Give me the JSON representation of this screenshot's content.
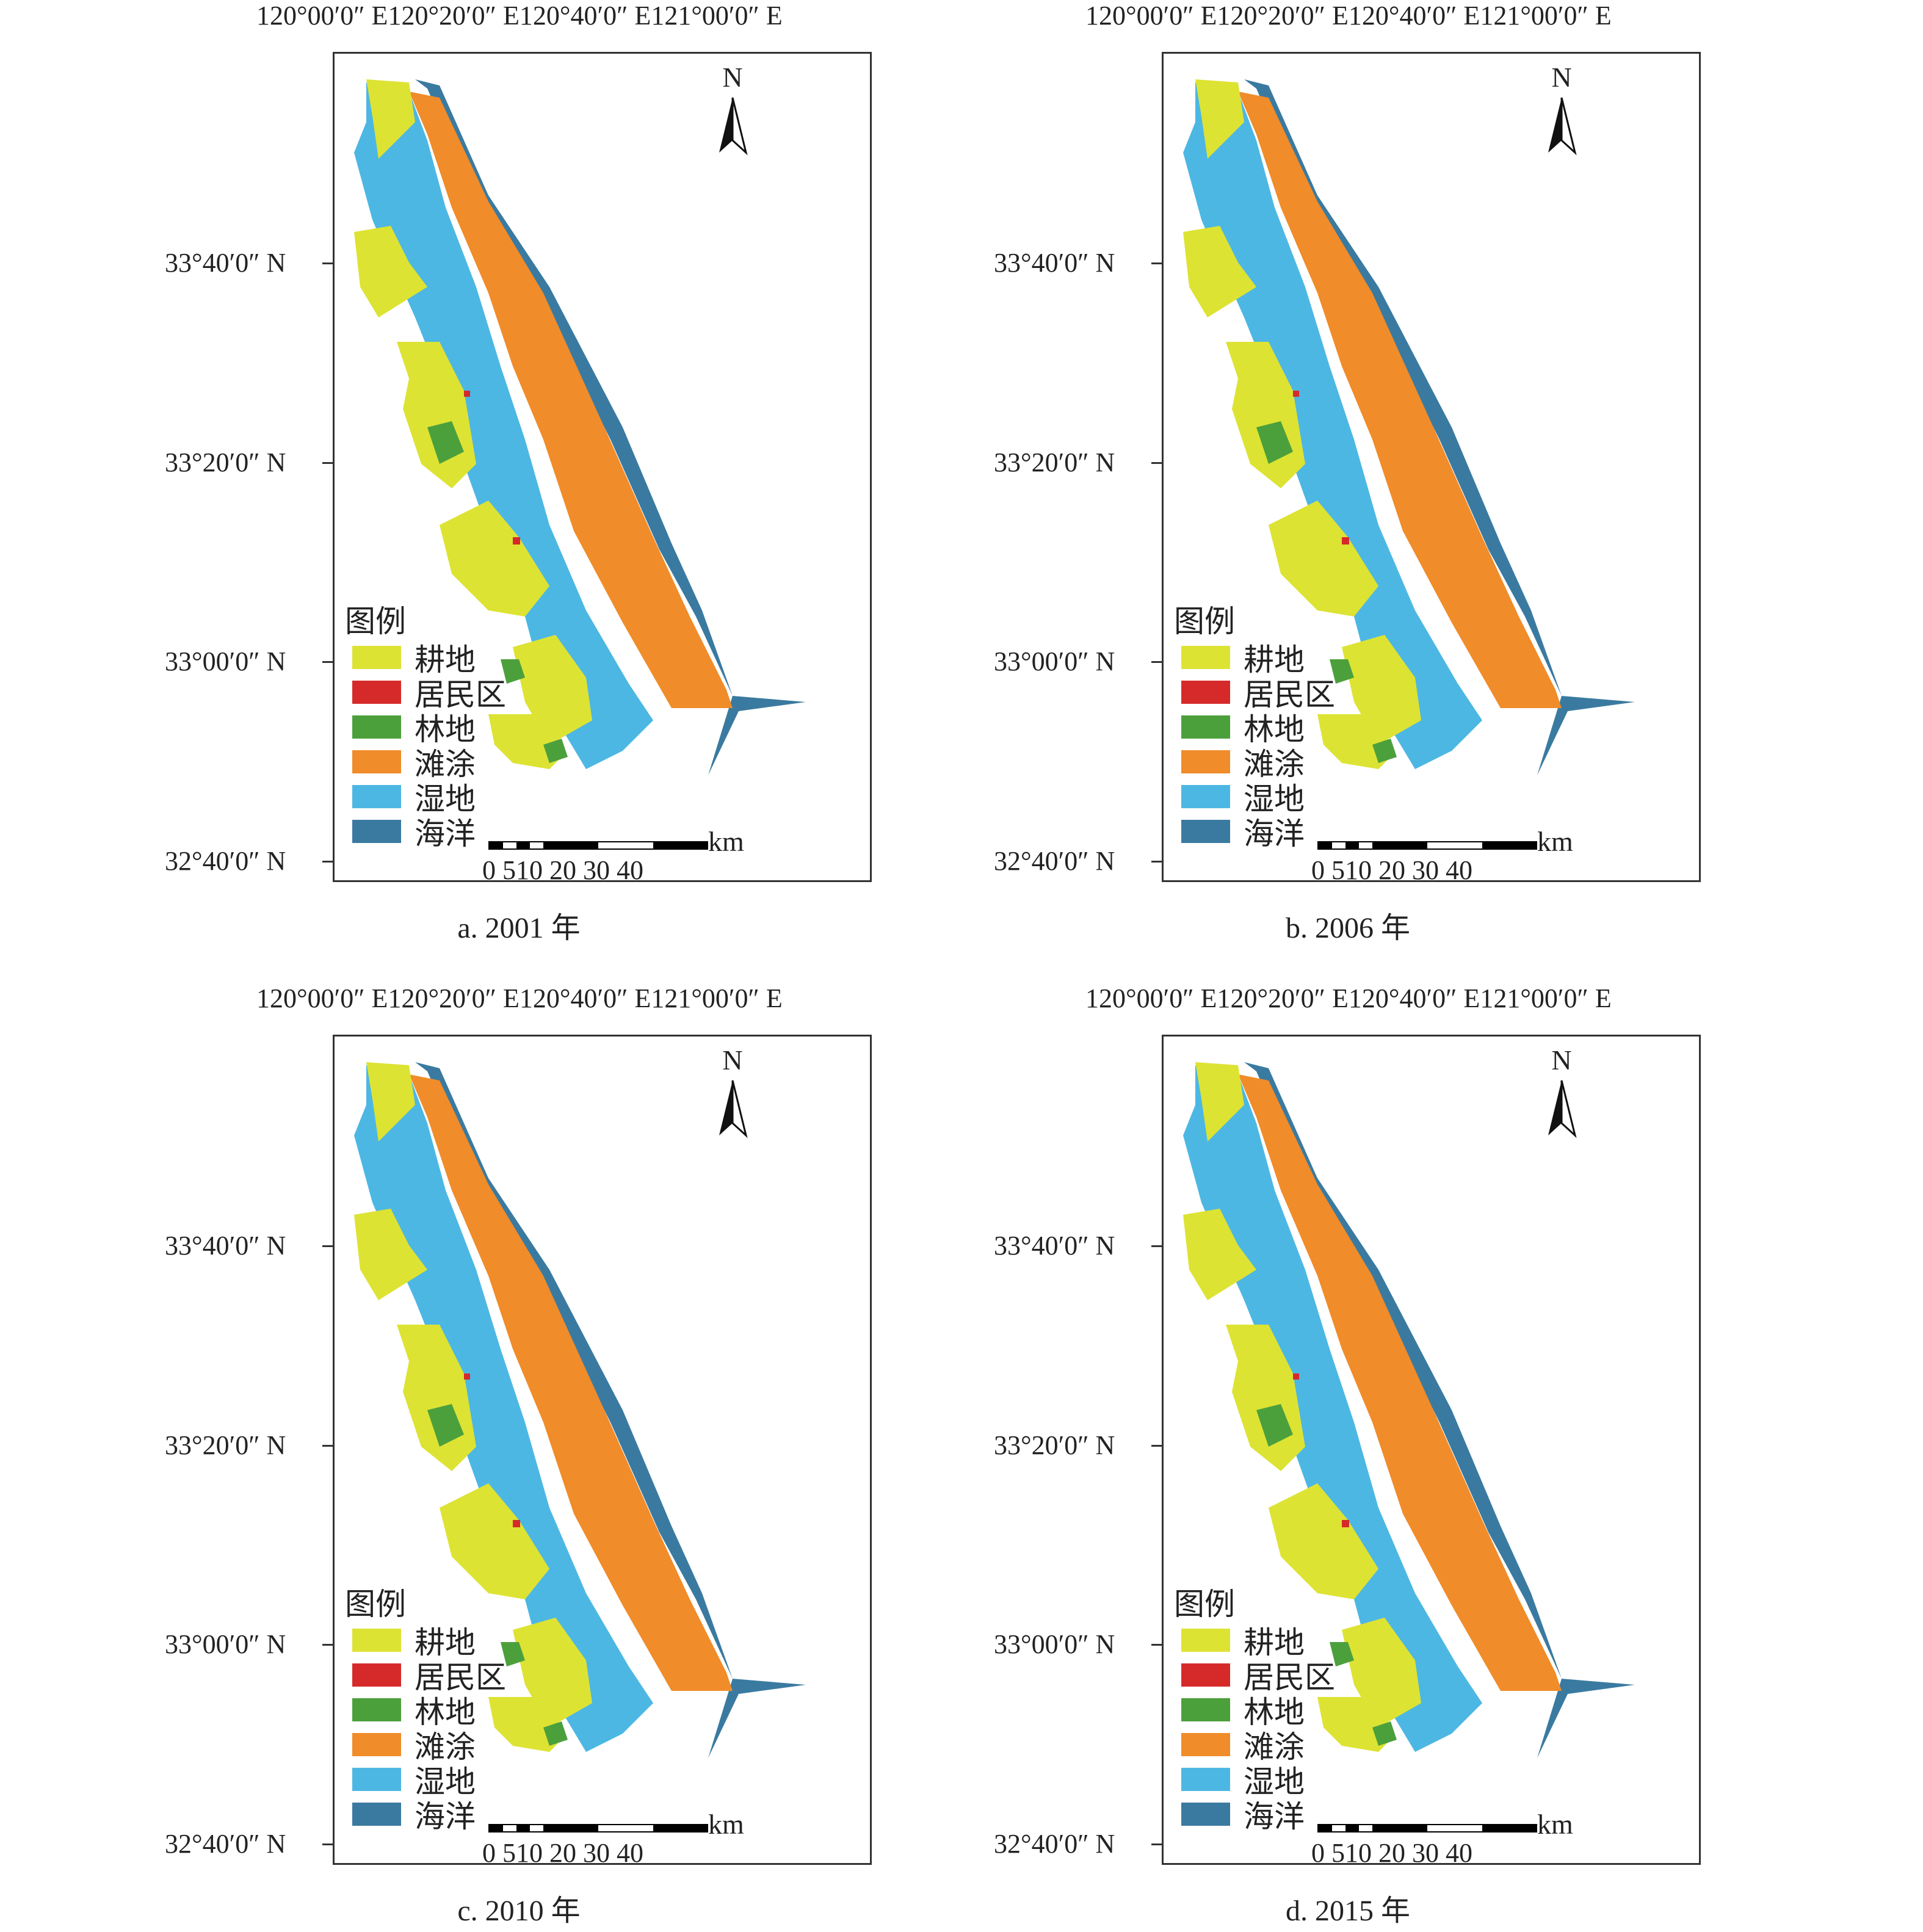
{
  "longitude_labels": [
    "120°00′0″ E",
    "120°20′0″ E",
    "120°40′0″ E",
    "121°00′0″ E"
  ],
  "latitude_labels": [
    "33°40′0″ N",
    "33°20′0″ N",
    "33°00′0″ N",
    "32°40′0″ N"
  ],
  "north_label": "N",
  "legend": {
    "title": "图例",
    "items": [
      {
        "label": "耕地",
        "color": "#dde333"
      },
      {
        "label": "居民区",
        "color": "#d62a2a"
      },
      {
        "label": "林地",
        "color": "#4ca03c"
      },
      {
        "label": "滩涂",
        "color": "#f08c2a"
      },
      {
        "label": "湿地",
        "color": "#4db7e3"
      },
      {
        "label": "海洋",
        "color": "#3a7aa0"
      }
    ]
  },
  "scale_bar": {
    "unit": "km",
    "ticks": "0 510 20 30 40"
  },
  "panels": [
    {
      "caption": "a. 2001 年"
    },
    {
      "caption": "b. 2006 年"
    },
    {
      "caption": "c. 2010 年"
    },
    {
      "caption": "d. 2015 年"
    }
  ]
}
